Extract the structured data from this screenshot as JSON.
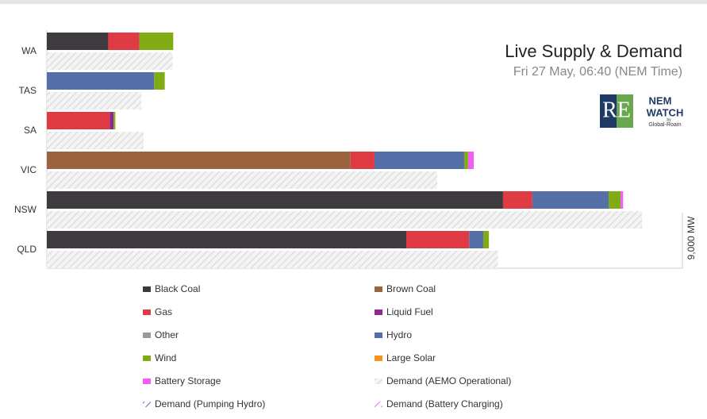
{
  "chart_data": {
    "type": "bar",
    "orientation": "horizontal",
    "title": "Live Supply & Demand",
    "subtitle": "Fri 27 May, 06:40 (NEM Time)",
    "logo_text": [
      "RE",
      "NEM",
      "WATCH",
      "by",
      "Global-Roam"
    ],
    "categories": [
      "WA",
      "TAS",
      "SA",
      "VIC",
      "NSW",
      "QLD"
    ],
    "xlim": [
      0,
      9000
    ],
    "xticks": [
      {
        "value": 9000,
        "label": "9,000 MW"
      }
    ],
    "series": [
      {
        "name": "Black Coal",
        "color": "#3e3a40",
        "stack": "supply",
        "values": [
          870,
          0,
          0,
          0,
          6460,
          5090
        ]
      },
      {
        "name": "Brown Coal",
        "color": "#9c6340",
        "stack": "supply",
        "values": [
          0,
          0,
          0,
          4300,
          0,
          0
        ]
      },
      {
        "name": "Gas",
        "color": "#e03a45",
        "stack": "supply",
        "values": [
          440,
          0,
          890,
          340,
          415,
          890
        ]
      },
      {
        "name": "Liquid Fuel",
        "color": "#8e2a8f",
        "stack": "supply",
        "values": [
          0,
          0,
          55,
          0,
          0,
          0
        ]
      },
      {
        "name": "Other",
        "color": "#9a9a9a",
        "stack": "supply",
        "values": [
          0,
          0,
          0,
          0,
          0,
          0
        ]
      },
      {
        "name": "Hydro",
        "color": "#5570a9",
        "stack": "supply",
        "values": [
          0,
          1520,
          0,
          1270,
          1080,
          200
        ]
      },
      {
        "name": "Wind",
        "color": "#80ab14",
        "stack": "supply",
        "values": [
          480,
          150,
          25,
          55,
          170,
          80
        ]
      },
      {
        "name": "Large Solar",
        "color": "#f7941d",
        "stack": "supply",
        "values": [
          0,
          0,
          0,
          0,
          0,
          0
        ]
      },
      {
        "name": "Battery Storage",
        "color": "#f45df2",
        "stack": "supply",
        "values": [
          0,
          0,
          0,
          80,
          35,
          0
        ]
      },
      {
        "name": "Demand (AEMO Operational)",
        "color": "#d6d6d6",
        "stack": "demand",
        "values": [
          1780,
          1340,
          1370,
          5530,
          8430,
          6390
        ]
      },
      {
        "name": "Demand (Pumping Hydro)",
        "color": "#5570a9",
        "stack": "demand",
        "values": [
          0,
          0,
          0,
          0,
          0,
          0
        ]
      },
      {
        "name": "Demand (Battery Charging)",
        "color": "#f45df2",
        "stack": "demand",
        "values": [
          0,
          0,
          0,
          0,
          0,
          0
        ]
      }
    ]
  }
}
